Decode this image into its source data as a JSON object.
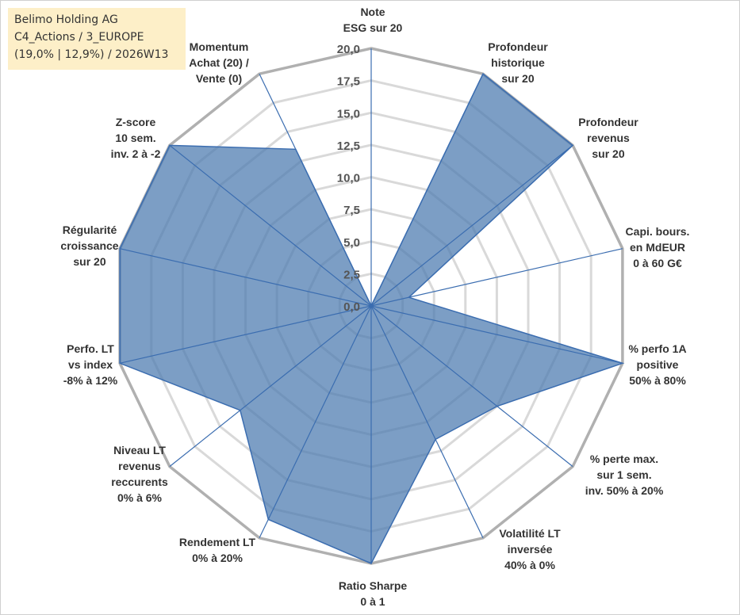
{
  "title_box": {
    "line1": "Belimo Holding AG",
    "line2": "C4_Actions / 3_EUROPE",
    "line3": "(19,0% | 12,9%) / 2026W13"
  },
  "chart_data": {
    "type": "radar",
    "title": "Belimo Holding AG",
    "rlim": [
      0,
      20
    ],
    "r_ticks": [
      0,
      2.5,
      5,
      7.5,
      10,
      12.5,
      15,
      17.5,
      20
    ],
    "r_tick_labels": [
      "0,0",
      "2,5",
      "5,0",
      "7,5",
      "10,0",
      "12,5",
      "15,0",
      "17,5",
      "20,0"
    ],
    "grid": true,
    "categories": [
      [
        "Note",
        "ESG sur 20"
      ],
      [
        "Profondeur",
        "historique",
        "sur 20"
      ],
      [
        "Profondeur",
        "revenus",
        "sur 20"
      ],
      [
        "Capi. bours.",
        "en MdEUR",
        "0 à 60 G€"
      ],
      [
        "% perfo 1A",
        "positive",
        "50% à 80%"
      ],
      [
        "% perte max.",
        "sur 1 sem.",
        "inv. 50% à 20%"
      ],
      [
        "Volatilité LT",
        "inversée",
        "40% à 0%"
      ],
      [
        "Ratio Sharpe",
        "0 à 1"
      ],
      [
        "Rendement LT",
        "0% à 20%"
      ],
      [
        "Niveau LT",
        "revenus",
        "reccurents",
        "0% à 6%"
      ],
      [
        "Perfo. LT",
        "vs index",
        "-8% à 12%"
      ],
      [
        "Régularité",
        "croissance",
        "sur 20"
      ],
      [
        "Z-score",
        "10 sem.",
        "inv. 2 à -2"
      ],
      [
        "Momentum",
        "Achat (20) /",
        "Vente (0)"
      ]
    ],
    "series": [
      {
        "name": "Belimo Holding AG",
        "values": [
          0,
          20,
          20,
          3,
          20,
          12.5,
          11.5,
          20,
          18.4,
          13,
          20,
          20,
          20,
          13.5
        ],
        "color": "#4a78ae"
      }
    ],
    "colors": {
      "fill": "#4a78ae",
      "stroke": "#3b6db0",
      "spokes": "#3b6db0",
      "grid": "#bdbdbd"
    }
  }
}
